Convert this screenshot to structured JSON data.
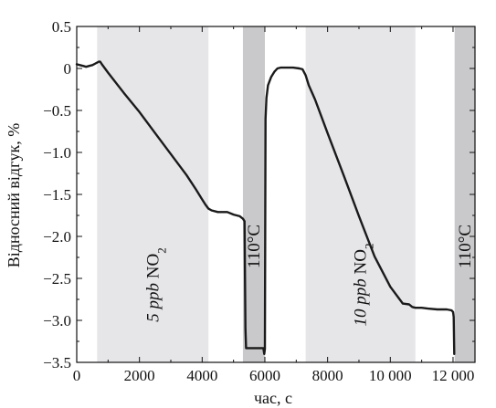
{
  "chart_data": {
    "type": "line",
    "xlabel": "час, с",
    "ylabel": "Відносний відгук, %",
    "xlim": [
      0,
      12700
    ],
    "ylim": [
      -3.5,
      0.5
    ],
    "xticks": [
      0,
      2000,
      4000,
      6000,
      8000,
      10000,
      12000
    ],
    "xtick_labels": [
      "0",
      "2000",
      "4000",
      "6000",
      "8000",
      "10 000",
      "12 000"
    ],
    "yticks": [
      0.5,
      0,
      -0.5,
      -1.0,
      -1.5,
      -2.0,
      -2.5,
      -3.0,
      -3.5
    ],
    "ytick_labels": [
      "0.5",
      "0",
      "−0.5",
      "−1.0",
      "−1.5",
      "−2.0",
      "−2.5",
      "−3.0",
      "−3.5"
    ],
    "grid": false,
    "legend": "none",
    "colors": {
      "gas_band": "#e6e6e9",
      "heat_band": "#c9c9cb",
      "line": "#1a1a1a"
    },
    "regions": [
      {
        "kind": "gas",
        "x0": 650,
        "x1": 4200,
        "label": {
          "italic": "5 ppb",
          "normal": " NO",
          "sub": "2"
        }
      },
      {
        "kind": "heat",
        "x0": 5300,
        "x1": 6000,
        "label": {
          "italic": "",
          "normal": "110°C",
          "sub": ""
        }
      },
      {
        "kind": "gas",
        "x0": 7300,
        "x1": 10800,
        "label": {
          "italic": "10 ppb",
          "normal": " NO",
          "sub": "2"
        }
      },
      {
        "kind": "heat",
        "x0": 12050,
        "x1": 12700,
        "label": {
          "italic": "",
          "normal": "110°C",
          "sub": ""
        }
      }
    ],
    "series": [
      {
        "x": [
          0,
          100,
          200,
          300,
          400,
          500,
          600,
          650,
          700,
          750,
          800,
          1000,
          1500,
          2000,
          2500,
          3000,
          3500,
          3800,
          4000,
          4100,
          4200,
          4300,
          4500,
          4800,
          5000,
          5200,
          5300,
          5320,
          5350,
          5380,
          5400,
          5550,
          5750,
          5950,
          5980,
          6000,
          6020,
          6050,
          6100,
          6200,
          6300,
          6400,
          6500,
          6700,
          6900,
          7100,
          7200,
          7300,
          7400,
          7600,
          8000,
          8500,
          9000,
          9500,
          10000,
          10400,
          10600,
          10700,
          10800,
          10850,
          10900,
          11000,
          11200,
          11500,
          11800,
          11950,
          12000,
          12020,
          12040
        ],
        "y": [
          0.05,
          0.04,
          0.03,
          0.02,
          0.03,
          0.04,
          0.06,
          0.07,
          0.08,
          0.08,
          0.05,
          -0.05,
          -0.29,
          -0.52,
          -0.77,
          -1.02,
          -1.27,
          -1.44,
          -1.56,
          -1.62,
          -1.67,
          -1.69,
          -1.71,
          -1.71,
          -1.74,
          -1.76,
          -1.79,
          -1.8,
          -1.82,
          -3.1,
          -3.33,
          -3.33,
          -3.33,
          -3.33,
          -3.4,
          -3.34,
          -0.6,
          -0.35,
          -0.2,
          -0.1,
          -0.04,
          0.0,
          0.01,
          0.01,
          0.01,
          0.0,
          -0.01,
          -0.08,
          -0.2,
          -0.37,
          -0.77,
          -1.26,
          -1.76,
          -2.24,
          -2.6,
          -2.8,
          -2.81,
          -2.84,
          -2.85,
          -2.85,
          -2.85,
          -2.85,
          -2.86,
          -2.87,
          -2.87,
          -2.88,
          -2.9,
          -2.96,
          -3.4
        ]
      }
    ]
  }
}
